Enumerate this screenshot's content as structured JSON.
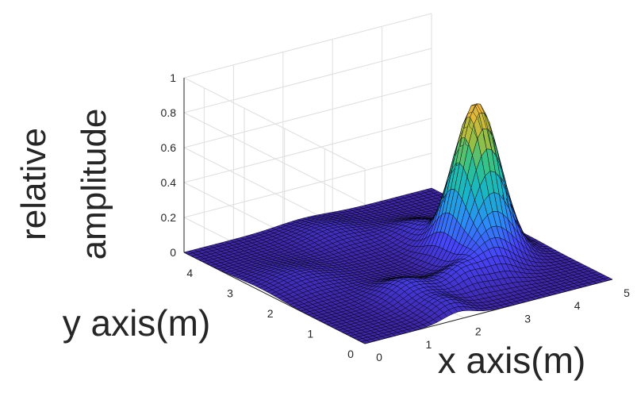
{
  "chart_data": {
    "type": "surface",
    "title": "",
    "xlabel": "x axis(m)",
    "ylabel": "y axis(m)",
    "zlabel_lines": [
      "relative",
      "amplitude"
    ],
    "xlim": [
      0,
      5
    ],
    "ylim": [
      0,
      4.5
    ],
    "zlim": [
      0,
      1
    ],
    "x_ticks": [
      "0",
      "1",
      "2",
      "3",
      "4",
      "5"
    ],
    "y_ticks": [
      "0",
      "1",
      "2",
      "3",
      "4"
    ],
    "z_ticks": [
      "0",
      "0.2",
      "0.4",
      "0.6",
      "0.8",
      "1"
    ],
    "grid": true,
    "colormap": [
      "#3e26a8",
      "#4743f8",
      "#2d8bf6",
      "#17b5c9",
      "#2ec28d",
      "#a5be3c",
      "#f6b73c",
      "#f9fb15"
    ],
    "edge_color": "#000000",
    "peaks": [
      {
        "x": 3.8,
        "y": 1.9,
        "amplitude": 0.87,
        "width": 0.38
      },
      {
        "x": 3.4,
        "y": 1.15,
        "amplitude": 0.14,
        "width": 0.32
      },
      {
        "x": 2.75,
        "y": 1.0,
        "amplitude": 0.11,
        "width": 0.3
      },
      {
        "x": 1.8,
        "y": 1.15,
        "amplitude": 0.1,
        "width": 0.38
      },
      {
        "x": 1.9,
        "y": 0.3,
        "amplitude": 0.07,
        "width": 0.3
      },
      {
        "x": 3.6,
        "y": 3.0,
        "amplitude": 0.08,
        "width": 0.4
      },
      {
        "x": 4.3,
        "y": 2.4,
        "amplitude": 0.08,
        "width": 0.3
      },
      {
        "x": 0.8,
        "y": 2.6,
        "amplitude": 0.05,
        "width": 0.5
      },
      {
        "x": 2.4,
        "y": 3.8,
        "amplitude": 0.05,
        "width": 0.5
      }
    ]
  }
}
